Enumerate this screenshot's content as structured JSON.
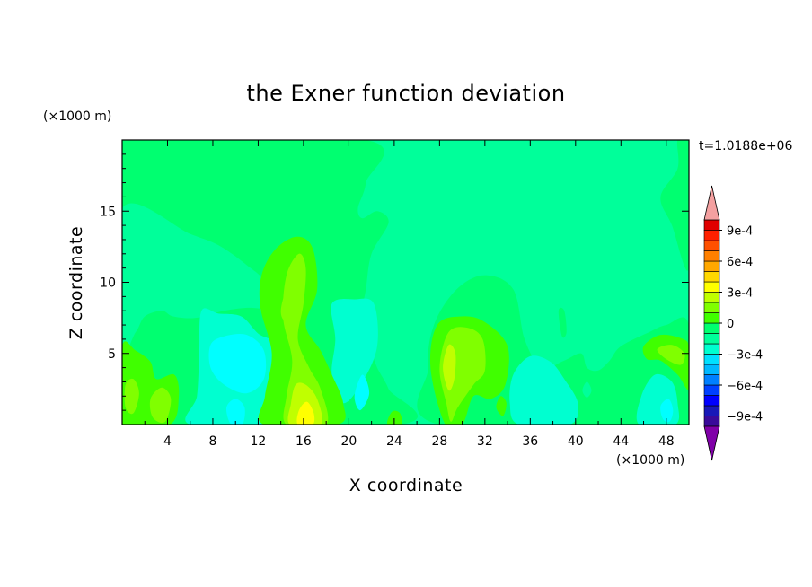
{
  "chart_data": {
    "type": "heatmap",
    "title": "the Exner function deviation",
    "xlabel": "X coordinate",
    "ylabel": "Z coordinate",
    "x_unit": "(×1000 m)",
    "y_unit": "(×1000 m)",
    "time_label": "t=1.0188e+06",
    "xlim": [
      0,
      50
    ],
    "ylim": [
      0,
      20
    ],
    "x_ticks": [
      "4",
      "8",
      "12",
      "16",
      "20",
      "24",
      "28",
      "32",
      "36",
      "40",
      "44",
      "48"
    ],
    "y_ticks": [
      "5",
      "10",
      "15"
    ],
    "colorbar": {
      "levels": [
        -0.0011,
        -0.001,
        -0.0009,
        -0.0008,
        -0.0007,
        -0.0006,
        -0.0005,
        -0.0004,
        -0.0003,
        -0.0002,
        -0.0001,
        0,
        0.0001,
        0.0002,
        0.0003,
        0.0004,
        0.0005,
        0.0006,
        0.0007,
        0.0008,
        0.0009,
        0.001,
        0.0011
      ],
      "tick_labels": [
        "9e-4",
        "6e-4",
        "3e-4",
        "0",
        "−3e-4",
        "−6e-4",
        "−9e-4"
      ],
      "colors": [
        "#8000a8",
        "#3a0a9a",
        "#1818b8",
        "#0000ff",
        "#0040ff",
        "#0080ff",
        "#00b8ff",
        "#00e0ff",
        "#00ffd0",
        "#00ff9a",
        "#00ff70",
        "#40ff00",
        "#80ff00",
        "#c0ff00",
        "#ffff00",
        "#ffd800",
        "#ffa800",
        "#ff8000",
        "#ff5000",
        "#ff2000",
        "#e00000",
        "#f4a0a0"
      ],
      "field_colors": {
        "neg3": "#00ffff",
        "neg2": "#00ffd0",
        "neg1": "#00ff9a",
        "zero": "#00ff70",
        "pos1": "#40ff00",
        "pos2": "#80ff00",
        "pos3": "#c0ff00",
        "pos4": "#ffff00"
      }
    },
    "regions": [
      {
        "level": "zero",
        "pts": [
          [
            0,
            20
          ],
          [
            21.5,
            20
          ],
          [
            21.5,
            17
          ],
          [
            20.8,
            15.2
          ],
          [
            21.2,
            14.5
          ],
          [
            22.5,
            15
          ],
          [
            23.5,
            14.2
          ],
          [
            22,
            12
          ],
          [
            21.5,
            9.5
          ],
          [
            21,
            7
          ],
          [
            21.8,
            5.5
          ],
          [
            22.5,
            4
          ],
          [
            23.5,
            2.5
          ],
          [
            24.5,
            0
          ],
          [
            0,
            0
          ]
        ]
      },
      {
        "level": "zero",
        "pts": [
          [
            49,
            20
          ],
          [
            50,
            20
          ],
          [
            50,
            11
          ],
          [
            48.5,
            14
          ],
          [
            47.5,
            16
          ],
          [
            49,
            18
          ]
        ]
      },
      {
        "level": "zero",
        "pts": [
          [
            28,
            0
          ],
          [
            27,
            4
          ],
          [
            27.5,
            7
          ],
          [
            29.5,
            9.5
          ],
          [
            32,
            10.5
          ],
          [
            34.5,
            9.5
          ],
          [
            35.5,
            6
          ],
          [
            37,
            4
          ],
          [
            39,
            4.5
          ],
          [
            40.5,
            5
          ],
          [
            41,
            4
          ],
          [
            42,
            3.8
          ],
          [
            43,
            4.5
          ],
          [
            44,
            5.5
          ],
          [
            46.5,
            6.5
          ],
          [
            48,
            7
          ],
          [
            50,
            7
          ],
          [
            50,
            0
          ]
        ]
      },
      {
        "level": "zero",
        "pts": [
          [
            38.5,
            8
          ],
          [
            38.8,
            6.2
          ],
          [
            39.2,
            6.5
          ],
          [
            39,
            8
          ]
        ]
      },
      {
        "level": "neg1",
        "pts": [
          [
            0,
            15.2
          ],
          [
            6,
            13.4
          ],
          [
            8.5,
            12.6
          ],
          [
            11,
            11.2
          ],
          [
            12.5,
            10
          ],
          [
            12.2,
            8
          ],
          [
            14.5,
            6.4
          ],
          [
            13.5,
            7.8
          ],
          [
            11.5,
            8.2
          ],
          [
            9,
            8
          ],
          [
            6.5,
            7.5
          ],
          [
            4.5,
            7.6
          ],
          [
            3.5,
            8
          ],
          [
            2,
            7.6
          ],
          [
            1.2,
            6.5
          ],
          [
            0,
            5.6
          ]
        ]
      },
      {
        "level": "neg2",
        "pts": [
          [
            7,
            8
          ],
          [
            8.5,
            7.8
          ],
          [
            10.5,
            7.6
          ],
          [
            12,
            6.4
          ],
          [
            13.5,
            5.6
          ],
          [
            14,
            3
          ],
          [
            13.8,
            0
          ],
          [
            6,
            0
          ],
          [
            6.6,
            2
          ],
          [
            6.8,
            5
          ]
        ]
      },
      {
        "level": "neg3",
        "pts": [
          [
            7.8,
            5.6
          ],
          [
            9,
            6.2
          ],
          [
            11,
            6.3
          ],
          [
            12.5,
            5.2
          ],
          [
            12.5,
            3.2
          ],
          [
            11,
            2.2
          ],
          [
            9,
            2.8
          ],
          [
            7.8,
            4
          ]
        ]
      },
      {
        "level": "neg3",
        "pts": [
          [
            9.2,
            1.2
          ],
          [
            10,
            1.8
          ],
          [
            10.8,
            1.2
          ],
          [
            10.6,
            0
          ],
          [
            9.6,
            0
          ]
        ]
      },
      {
        "level": "neg2",
        "pts": [
          [
            18.5,
            8.5
          ],
          [
            20.5,
            8.8
          ],
          [
            22.2,
            8.5
          ],
          [
            22.5,
            5.5
          ],
          [
            21.2,
            3
          ],
          [
            19.5,
            1.5
          ],
          [
            18.5,
            3.5
          ],
          [
            18.8,
            6
          ]
        ]
      },
      {
        "level": "neg3",
        "pts": [
          [
            20.5,
            2
          ],
          [
            21.2,
            3.5
          ],
          [
            21.8,
            2.2
          ],
          [
            21,
            1
          ]
        ]
      },
      {
        "level": "neg2",
        "pts": [
          [
            34.5,
            3.5
          ],
          [
            36,
            4.8
          ],
          [
            37.8,
            4.4
          ],
          [
            39,
            3.2
          ],
          [
            40.2,
            1.5
          ],
          [
            39.5,
            0
          ],
          [
            35,
            0
          ],
          [
            34.2,
            1.5
          ]
        ]
      },
      {
        "level": "neg2",
        "pts": [
          [
            45.8,
            2
          ],
          [
            47,
            3.5
          ],
          [
            48.5,
            3
          ],
          [
            49,
            1.5
          ],
          [
            48.8,
            0
          ],
          [
            45.6,
            0
          ]
        ]
      },
      {
        "level": "neg3",
        "pts": [
          [
            47.5,
            1.3
          ],
          [
            48.2,
            1.8
          ],
          [
            48.6,
            1
          ],
          [
            48.3,
            0.2
          ],
          [
            47.7,
            0.4
          ]
        ]
      },
      {
        "level": "pos1",
        "pts": [
          [
            12.5,
            0
          ],
          [
            12.6,
            2
          ],
          [
            13.2,
            5
          ],
          [
            12.2,
            8.2
          ],
          [
            12.3,
            10.5
          ],
          [
            13.5,
            12.3
          ],
          [
            15.4,
            13.2
          ],
          [
            16.8,
            12.4
          ],
          [
            17.2,
            9.5
          ],
          [
            16.2,
            7
          ],
          [
            17.5,
            5.2
          ],
          [
            18.5,
            3.5
          ],
          [
            19.5,
            1.5
          ],
          [
            19,
            0
          ]
        ]
      },
      {
        "level": "pos2",
        "pts": [
          [
            14.5,
            0
          ],
          [
            14.5,
            2
          ],
          [
            15,
            4.5
          ],
          [
            14.2,
            7.5
          ],
          [
            14.5,
            10.5
          ],
          [
            15.6,
            12
          ],
          [
            16.2,
            11
          ],
          [
            16,
            8.5
          ],
          [
            15.5,
            6
          ],
          [
            16.5,
            4
          ],
          [
            17.5,
            2.5
          ],
          [
            18,
            0
          ]
        ]
      },
      {
        "level": "pos3",
        "pts": [
          [
            14.8,
            0
          ],
          [
            14.9,
            1.5
          ],
          [
            15.3,
            2.8
          ],
          [
            16.2,
            2.8
          ],
          [
            17.2,
            1.8
          ],
          [
            17.5,
            0
          ]
        ]
      },
      {
        "level": "pos4",
        "pts": [
          [
            15.5,
            0
          ],
          [
            15.6,
            1
          ],
          [
            16.3,
            1.6
          ],
          [
            16.9,
            0.8
          ],
          [
            16.8,
            0
          ]
        ]
      },
      {
        "level": "pos2",
        "pts": [
          [
            14,
            8
          ],
          [
            14.3,
            9
          ],
          [
            14.7,
            8.5
          ],
          [
            14.6,
            7.6
          ],
          [
            14.2,
            7.4
          ]
        ]
      },
      {
        "level": "pos1",
        "pts": [
          [
            27.2,
            4
          ],
          [
            27.8,
            7
          ],
          [
            30,
            7.6
          ],
          [
            32,
            7.2
          ],
          [
            34,
            5.5
          ],
          [
            33.8,
            2.8
          ],
          [
            32.5,
            1.8
          ],
          [
            31,
            2
          ],
          [
            30,
            0
          ],
          [
            28.5,
            0
          ]
        ]
      },
      {
        "level": "pos2",
        "pts": [
          [
            28,
            4
          ],
          [
            28.8,
            6.5
          ],
          [
            30.5,
            6.8
          ],
          [
            31.8,
            6
          ],
          [
            32,
            3.8
          ],
          [
            31,
            2.8
          ],
          [
            29.6,
            1.2
          ],
          [
            29,
            0.2
          ],
          [
            28.6,
            1.5
          ]
        ]
      },
      {
        "level": "pos3",
        "pts": [
          [
            28.3,
            4
          ],
          [
            28.8,
            5.6
          ],
          [
            29.4,
            5
          ],
          [
            29.3,
            3.2
          ],
          [
            28.8,
            2.4
          ]
        ]
      },
      {
        "level": "pos1",
        "pts": [
          [
            0,
            5.5
          ],
          [
            1.2,
            5.2
          ],
          [
            2.5,
            4.4
          ],
          [
            3,
            3.2
          ],
          [
            4.6,
            3.5
          ],
          [
            5,
            2
          ],
          [
            4.2,
            0
          ],
          [
            0,
            0
          ]
        ]
      },
      {
        "level": "pos2",
        "pts": [
          [
            0.3,
            2.8
          ],
          [
            1,
            3.2
          ],
          [
            1.5,
            2.2
          ],
          [
            1,
            0.8
          ],
          [
            0.3,
            1.2
          ]
        ]
      },
      {
        "level": "pos2",
        "pts": [
          [
            2.5,
            1.8
          ],
          [
            3.5,
            2.6
          ],
          [
            4.3,
            1.8
          ],
          [
            3.8,
            0.2
          ],
          [
            2.7,
            0.5
          ]
        ]
      },
      {
        "level": "pos1",
        "pts": [
          [
            46,
            5.5
          ],
          [
            47.5,
            6.3
          ],
          [
            49.5,
            6
          ],
          [
            50,
            5.3
          ],
          [
            50,
            2.5
          ],
          [
            49,
            3.5
          ],
          [
            47.5,
            4.5
          ],
          [
            46.3,
            4.6
          ]
        ]
      },
      {
        "level": "pos2",
        "pts": [
          [
            47.2,
            5.3
          ],
          [
            48.5,
            5.6
          ],
          [
            49.6,
            5
          ],
          [
            49.3,
            4.2
          ],
          [
            48,
            4.6
          ]
        ]
      },
      {
        "level": "pos1",
        "pts": [
          [
            23.4,
            0
          ],
          [
            23.8,
            0.9
          ],
          [
            24.5,
            0.8
          ],
          [
            24.6,
            0
          ]
        ]
      },
      {
        "level": "pos1",
        "pts": [
          [
            33,
            1.2
          ],
          [
            33.4,
            2
          ],
          [
            33.9,
            1.5
          ],
          [
            33.6,
            0.6
          ]
        ]
      },
      {
        "level": "neg1",
        "pts": [
          [
            40.6,
            2.4
          ],
          [
            41,
            3
          ],
          [
            41.4,
            2.4
          ],
          [
            41,
            1.9
          ]
        ]
      }
    ]
  }
}
